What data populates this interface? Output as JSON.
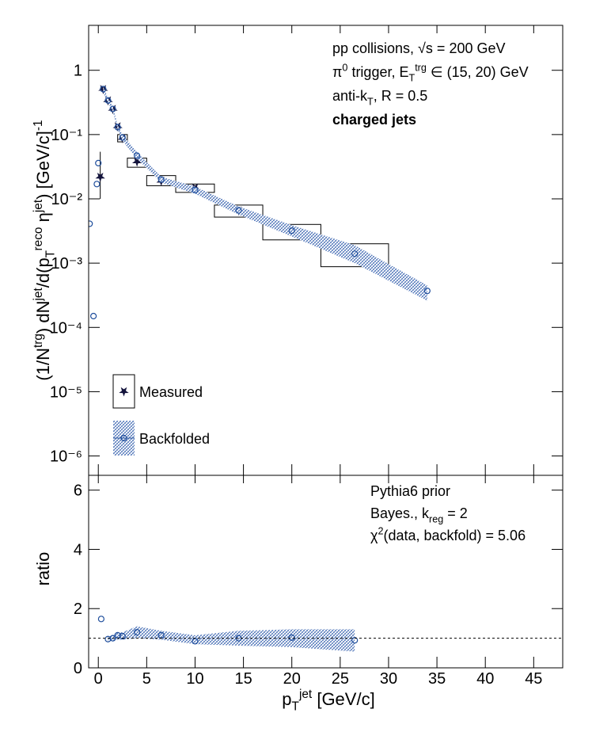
{
  "chart_data": [
    {
      "type": "scatter",
      "log_y": true,
      "legend": "lower left",
      "ylim": [
        5e-07,
        5
      ],
      "yticks": [
        {
          "value": 1e-06,
          "label": "10⁻⁶"
        },
        {
          "value": 1e-05,
          "label": "10⁻⁵"
        },
        {
          "value": 0.0001,
          "label": "10⁻⁴"
        },
        {
          "value": 0.001,
          "label": "10⁻³"
        },
        {
          "value": 0.01,
          "label": "10⁻²"
        },
        {
          "value": 0.1,
          "label": "10⁻¹"
        },
        1
      ],
      "y_label": [
        {
          "text": "(1/N"
        },
        {
          "text": "trg",
          "shift": "sup"
        },
        {
          "text": ") dN"
        },
        {
          "text": "jet",
          "shift": "sup"
        },
        {
          "text": "/d(p"
        },
        {
          "text": "T",
          "shift": "sub"
        },
        {
          "text": "reco",
          "shift": "sup"
        },
        {
          "text": " η"
        },
        {
          "text": "jet",
          "shift": "sup"
        },
        {
          "text": ") [GeV/c]"
        },
        {
          "text": "-1",
          "shift": "sup"
        }
      ],
      "annotations": [
        [
          {
            "text": "pp collisions, √s = 200 GeV"
          }
        ],
        [
          {
            "text": "π"
          },
          {
            "text": "0",
            "shift": "sup"
          },
          {
            "text": " trigger, E"
          },
          {
            "text": "T",
            "shift": "sub"
          },
          {
            "text": "trg",
            "shift": "sup"
          },
          {
            "text": " ∈ (15, 20) GeV"
          }
        ],
        [
          {
            "text": "anti-k"
          },
          {
            "text": "T",
            "shift": "sub"
          },
          {
            "text": ", R = 0.5"
          }
        ],
        [
          {
            "text": "charged jets",
            "bold": true
          }
        ]
      ],
      "series": [
        {
          "name": "Measured",
          "color": "#14143c",
          "marker": "star",
          "x": [
            0.2,
            0.5,
            1,
            1.5,
            2,
            2.5,
            4,
            6.5,
            10,
            14.5,
            20,
            26.5
          ],
          "values": [
            0.022,
            0.51,
            0.34,
            0.25,
            0.134,
            0.088,
            0.038,
            0.019,
            0.015,
            0.0066,
            0.0031,
            0.0014
          ],
          "stat_low": [
            0.01,
            null,
            null,
            null,
            null,
            null,
            null,
            null,
            null,
            null,
            null,
            null
          ],
          "stat_high": [
            0.054,
            null,
            null,
            null,
            null,
            null,
            null,
            null,
            null,
            null,
            null,
            null
          ],
          "bin_low": [
            null,
            null,
            null,
            null,
            null,
            2,
            3,
            5,
            8,
            12,
            17,
            23
          ],
          "bin_high": [
            null,
            null,
            null,
            null,
            null,
            3,
            5,
            8,
            12,
            17,
            23,
            30
          ],
          "sys_low": [
            null,
            null,
            null,
            null,
            null,
            0.077,
            0.031,
            0.016,
            0.0126,
            0.0052,
            0.0023,
            0.00088
          ],
          "sys_high": [
            null,
            null,
            null,
            null,
            null,
            0.1,
            0.043,
            0.023,
            0.017,
            0.008,
            0.004,
            0.002
          ]
        },
        {
          "name": "Backfolded",
          "color": "#1f4e9c",
          "marker": "circle",
          "x": [
            -0.9,
            -0.5,
            -0.15,
            0,
            0.5,
            1,
            1.5,
            2,
            2.5,
            4,
            6.5,
            10,
            14.5,
            20,
            26.5,
            34
          ],
          "values": [
            0.0041,
            0.00015,
            0.017,
            0.036,
            0.51,
            0.34,
            0.25,
            0.13,
            0.09,
            0.047,
            0.02,
            0.0137,
            0.0066,
            0.0032,
            0.0014,
            0.00037
          ],
          "band_low": [
            null,
            null,
            null,
            null,
            0.46,
            0.31,
            0.23,
            0.12,
            0.08,
            0.042,
            0.018,
            0.012,
            0.0057,
            0.0026,
            0.001,
            0.00026
          ],
          "band_high": [
            null,
            null,
            null,
            null,
            0.56,
            0.37,
            0.27,
            0.14,
            0.1,
            0.053,
            0.022,
            0.0155,
            0.0076,
            0.0039,
            0.0019,
            0.00045
          ]
        }
      ]
    },
    {
      "type": "scatter",
      "log_y": false,
      "xlim": [
        -1,
        48
      ],
      "xticks": [
        0,
        5,
        10,
        15,
        20,
        25,
        30,
        35,
        40,
        45
      ],
      "ylim": [
        0,
        6.5
      ],
      "yticks": [
        0,
        2,
        4,
        6
      ],
      "reference": 1,
      "x_label": [
        {
          "text": "p"
        },
        {
          "text": "T",
          "shift": "sub"
        },
        {
          "text": "jet",
          "shift": "sup"
        },
        {
          "text": " [GeV/c]"
        }
      ],
      "y_label": [
        {
          "text": "ratio"
        }
      ],
      "annotations": [
        [
          {
            "text": "Pythia6 prior"
          }
        ],
        [
          {
            "text": "Bayes., k"
          },
          {
            "text": "reg",
            "shift": "sub"
          },
          {
            "text": " = 2"
          }
        ],
        [
          {
            "text": "χ"
          },
          {
            "text": "2",
            "shift": "sup"
          },
          {
            "text": "(data, backfold) = 5.06"
          }
        ]
      ],
      "series": [
        {
          "color": "#1f4e9c",
          "marker": "circle",
          "x": [
            0.3,
            1,
            1.5,
            2,
            2.5,
            4,
            6.5,
            10,
            14.5,
            20,
            26.5
          ],
          "values": [
            1.65,
            0.97,
            1.0,
            1.1,
            1.07,
            1.2,
            1.1,
            0.9,
            1.0,
            1.02,
            0.93
          ],
          "band_low": [
            null,
            0.9,
            0.92,
            0.95,
            0.95,
            1.0,
            0.95,
            0.8,
            0.75,
            0.7,
            0.55
          ],
          "band_high": [
            null,
            1.05,
            1.1,
            1.2,
            1.2,
            1.4,
            1.25,
            1.1,
            1.25,
            1.3,
            1.3
          ]
        }
      ]
    }
  ]
}
